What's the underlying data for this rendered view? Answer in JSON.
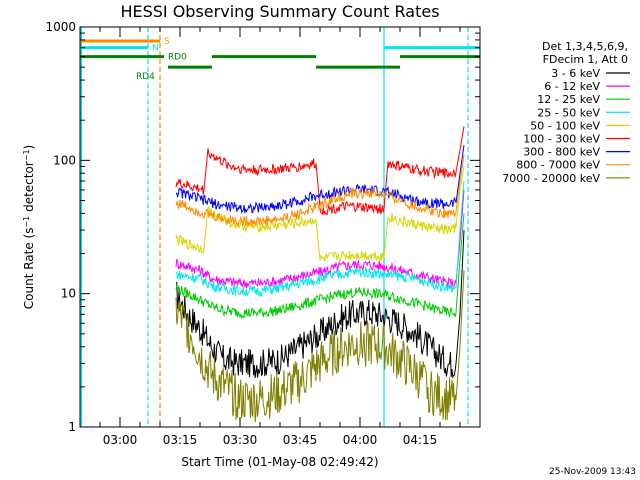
{
  "chart_data": {
    "type": "line",
    "title": "HESSI Observing Summary Count Rates",
    "xlabel": "Start Time (01-May-08 02:49:42)",
    "ylabel_parts": [
      "Count Rate (s",
      "−1",
      " detector",
      "−1",
      ")"
    ],
    "y_scale": "log",
    "ylim": [
      1,
      1000
    ],
    "y_ticks": [
      {
        "value": 1,
        "label": "1"
      },
      {
        "value": 10,
        "label": "10"
      },
      {
        "value": 100,
        "label": "100"
      },
      {
        "value": 1000,
        "label": "1000"
      }
    ],
    "xlim_min": [
      0,
      100
    ],
    "x_ticks": [
      {
        "value": 10,
        "label": "03:00"
      },
      {
        "value": 25,
        "label": "03:15"
      },
      {
        "value": 40,
        "label": "03:30"
      },
      {
        "value": 55,
        "label": "03:45"
      },
      {
        "value": 70,
        "label": "04:00"
      },
      {
        "value": 85,
        "label": "04:15"
      }
    ],
    "footer_date": "25-Nov-2009 13:43",
    "legend_header": [
      "Det 1,3,4,5,6,9,",
      "FDecim 1, Att 0"
    ],
    "series": [
      {
        "name": "3 - 6 keV",
        "color": "#000000",
        "values": [
          [
            24,
            10
          ],
          [
            27,
            7
          ],
          [
            30,
            5.5
          ],
          [
            33,
            4
          ],
          [
            36,
            3.2
          ],
          [
            40,
            3
          ],
          [
            45,
            3
          ],
          [
            50,
            3.2
          ],
          [
            55,
            4
          ],
          [
            60,
            5
          ],
          [
            65,
            6.5
          ],
          [
            68,
            7
          ],
          [
            72,
            7.3
          ],
          [
            76,
            6.8
          ],
          [
            80,
            6
          ],
          [
            84,
            5
          ],
          [
            88,
            3.8
          ],
          [
            92,
            3
          ],
          [
            94,
            3
          ],
          [
            95,
            7
          ],
          [
            96,
            30
          ]
        ]
      },
      {
        "name": "6 - 12 keV",
        "color": "#ff00ff",
        "values": [
          [
            24,
            17
          ],
          [
            27,
            16
          ],
          [
            30,
            15
          ],
          [
            33,
            13
          ],
          [
            36,
            12.5
          ],
          [
            40,
            12
          ],
          [
            45,
            12
          ],
          [
            50,
            12.5
          ],
          [
            55,
            13.5
          ],
          [
            60,
            14.5
          ],
          [
            65,
            16
          ],
          [
            68,
            16.5
          ],
          [
            72,
            16.5
          ],
          [
            76,
            16
          ],
          [
            80,
            15
          ],
          [
            84,
            14
          ],
          [
            88,
            13
          ],
          [
            92,
            12
          ],
          [
            94,
            12
          ],
          [
            95,
            25
          ],
          [
            96,
            60
          ]
        ]
      },
      {
        "name": "12 - 25 keV",
        "color": "#00cc00",
        "values": [
          [
            24,
            11
          ],
          [
            27,
            10
          ],
          [
            30,
            9
          ],
          [
            33,
            8
          ],
          [
            36,
            7.5
          ],
          [
            40,
            7.2
          ],
          [
            45,
            7.2
          ],
          [
            50,
            7.5
          ],
          [
            55,
            8.2
          ],
          [
            60,
            9
          ],
          [
            65,
            9.8
          ],
          [
            68,
            10.2
          ],
          [
            72,
            10.2
          ],
          [
            76,
            9.8
          ],
          [
            80,
            9.2
          ],
          [
            84,
            8.5
          ],
          [
            88,
            7.8
          ],
          [
            92,
            7.2
          ],
          [
            94,
            7.2
          ],
          [
            95,
            18
          ],
          [
            96,
            40
          ]
        ]
      },
      {
        "name": "25 - 50 keV",
        "color": "#00e5ee",
        "values": [
          [
            24,
            14
          ],
          [
            27,
            13.5
          ],
          [
            30,
            13
          ],
          [
            33,
            11.5
          ],
          [
            36,
            11
          ],
          [
            40,
            10.5
          ],
          [
            45,
            10.5
          ],
          [
            50,
            11
          ],
          [
            55,
            12
          ],
          [
            60,
            13
          ],
          [
            65,
            14
          ],
          [
            68,
            14.5
          ],
          [
            72,
            14.5
          ],
          [
            76,
            14
          ],
          [
            80,
            13.5
          ],
          [
            84,
            13
          ],
          [
            88,
            12
          ],
          [
            92,
            11
          ],
          [
            94,
            11
          ],
          [
            95,
            30
          ],
          [
            96,
            70
          ]
        ]
      },
      {
        "name": "50 - 100 keV",
        "color": "#d6d600",
        "values": [
          [
            24,
            26
          ],
          [
            26,
            24
          ],
          [
            28,
            23
          ],
          [
            31,
            22
          ],
          [
            32,
            42
          ],
          [
            35,
            37
          ],
          [
            38,
            34
          ],
          [
            42,
            32
          ],
          [
            47,
            32
          ],
          [
            52,
            33
          ],
          [
            55,
            34
          ],
          [
            59,
            36
          ],
          [
            60,
            18
          ],
          [
            64,
            19
          ],
          [
            68,
            19.5
          ],
          [
            72,
            19.5
          ],
          [
            76,
            19
          ],
          [
            77,
            38
          ],
          [
            80,
            35
          ],
          [
            84,
            33
          ],
          [
            88,
            31
          ],
          [
            92,
            30
          ],
          [
            94,
            31
          ],
          [
            95,
            60
          ],
          [
            96,
            90
          ]
        ]
      },
      {
        "name": "100 - 300 keV",
        "color": "#ff0000",
        "values": [
          [
            24,
            68
          ],
          [
            26,
            66
          ],
          [
            28,
            63
          ],
          [
            31,
            60
          ],
          [
            32,
            115
          ],
          [
            35,
            100
          ],
          [
            38,
            90
          ],
          [
            42,
            85
          ],
          [
            47,
            85
          ],
          [
            52,
            87
          ],
          [
            55,
            90
          ],
          [
            59,
            95
          ],
          [
            60,
            42
          ],
          [
            64,
            44
          ],
          [
            68,
            45
          ],
          [
            72,
            44
          ],
          [
            76,
            43
          ],
          [
            77,
            95
          ],
          [
            80,
            90
          ],
          [
            84,
            85
          ],
          [
            88,
            82
          ],
          [
            92,
            80
          ],
          [
            94,
            82
          ],
          [
            95,
            120
          ],
          [
            96,
            180
          ]
        ]
      },
      {
        "name": "300 - 800 keV",
        "color": "#0000ff",
        "values": [
          [
            24,
            58
          ],
          [
            27,
            55
          ],
          [
            31,
            50
          ],
          [
            35,
            46
          ],
          [
            40,
            44
          ],
          [
            45,
            44
          ],
          [
            50,
            46
          ],
          [
            55,
            50
          ],
          [
            60,
            55
          ],
          [
            64,
            58
          ],
          [
            68,
            60
          ],
          [
            72,
            60
          ],
          [
            76,
            58
          ],
          [
            80,
            54
          ],
          [
            84,
            50
          ],
          [
            88,
            48
          ],
          [
            92,
            47
          ],
          [
            94,
            48
          ],
          [
            95,
            80
          ],
          [
            96,
            130
          ]
        ]
      },
      {
        "name": "800 - 7000 keV",
        "color": "#ff8c00",
        "values": [
          [
            24,
            48
          ],
          [
            27,
            45
          ],
          [
            31,
            40
          ],
          [
            35,
            37
          ],
          [
            40,
            35
          ],
          [
            45,
            35
          ],
          [
            50,
            36
          ],
          [
            55,
            40
          ],
          [
            60,
            46
          ],
          [
            64,
            52
          ],
          [
            68,
            56
          ],
          [
            72,
            57
          ],
          [
            76,
            55
          ],
          [
            80,
            50
          ],
          [
            84,
            45
          ],
          [
            88,
            42
          ],
          [
            92,
            40
          ],
          [
            94,
            41
          ],
          [
            95,
            70
          ],
          [
            96,
            110
          ]
        ]
      },
      {
        "name": "7000 - 20000 keV",
        "color": "#808000",
        "values": [
          [
            24,
            7.5
          ],
          [
            27,
            5.5
          ],
          [
            30,
            3.5
          ],
          [
            33,
            2.4
          ],
          [
            36,
            2
          ],
          [
            40,
            1.6
          ],
          [
            45,
            1.6
          ],
          [
            50,
            1.8
          ],
          [
            55,
            2.2
          ],
          [
            60,
            3
          ],
          [
            65,
            3.8
          ],
          [
            68,
            4.2
          ],
          [
            72,
            4.2
          ],
          [
            76,
            4
          ],
          [
            80,
            3.2
          ],
          [
            84,
            2.5
          ],
          [
            88,
            1.8
          ],
          [
            92,
            1.6
          ],
          [
            94,
            1.6
          ],
          [
            95,
            4
          ],
          [
            96,
            15
          ]
        ]
      }
    ],
    "vertical_markers": [
      {
        "x": 17,
        "color": "#00e5ee",
        "style": "dashed"
      },
      {
        "x": 20,
        "color": "#ff8c00",
        "style": "dashed"
      },
      {
        "x": 76,
        "color": "#00e5ee",
        "style": "solid"
      },
      {
        "x": 97,
        "color": "#00e5ee",
        "style": "dashed"
      }
    ],
    "state_bars": [
      {
        "label": "S",
        "color": "#ff8c00",
        "level": 785,
        "x": [
          0,
          20
        ],
        "label_x": 21
      },
      {
        "label": "N",
        "color": "#00e5ee",
        "level": 700,
        "x": [
          0,
          17
        ],
        "label_x": 18
      },
      {
        "label": "N",
        "color": "#00e5ee",
        "level": 700,
        "x": [
          76,
          100
        ],
        "label_x": null
      },
      {
        "label": "RD0",
        "color": "#008000",
        "level": 600,
        "x": [
          0,
          21
        ],
        "label_x": 22
      },
      {
        "label": "RD0",
        "color": "#008000",
        "level": 600,
        "x": [
          33,
          59
        ],
        "label_x": null
      },
      {
        "label": "RD0",
        "color": "#008000",
        "level": 600,
        "x": [
          80,
          100
        ],
        "label_x": null
      },
      {
        "label": "RD4",
        "color": "#008000",
        "level": 500,
        "x": [
          22,
          33
        ],
        "label_x": 14
      },
      {
        "label": "RD4",
        "color": "#008000",
        "level": 500,
        "x": [
          59,
          80
        ],
        "label_x": null
      }
    ]
  }
}
